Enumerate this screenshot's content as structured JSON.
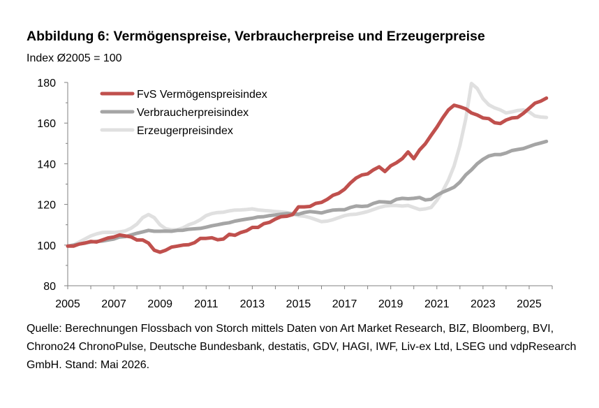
{
  "title": "Abbildung 6: Vermögenspreise, Verbraucherpreise und Erzeugerpreise",
  "subtitle": "Index Ø2005 = 100",
  "source": "Quelle: Berechnungen Flossbach von Storch mittels Daten von Art Market Research, BIZ, Bloomberg, BVI, Chrono24 ChronoPulse, Deutsche Bundesbank, destatis, GDV, HAGI, IWF, Liv-ex Ltd, LSEG und vdpResearch GmbH. Stand: Mai 2026.",
  "chart_data": {
    "type": "line",
    "xlim": [
      2005,
      2026
    ],
    "ylim": [
      80,
      180
    ],
    "xticks": [
      "2005",
      "2007",
      "2009",
      "2011",
      "2013",
      "2015",
      "2017",
      "2019",
      "2021",
      "2023",
      "2025"
    ],
    "yticks": [
      "80",
      "100",
      "120",
      "140",
      "160",
      "180"
    ],
    "grid": false,
    "legend_position": "top-left",
    "series": [
      {
        "name": "FvS Vermögenspreisindex",
        "color": "#c0504d",
        "points": [
          [
            2005.0,
            99.5
          ],
          [
            2005.25,
            99.5
          ],
          [
            2005.5,
            100.5
          ],
          [
            2005.75,
            101
          ],
          [
            2006.0,
            101.8
          ],
          [
            2006.25,
            101.5
          ],
          [
            2006.5,
            102.5
          ],
          [
            2006.75,
            103.5
          ],
          [
            2007.0,
            104
          ],
          [
            2007.25,
            105
          ],
          [
            2007.5,
            104.5
          ],
          [
            2007.75,
            104
          ],
          [
            2008.0,
            102.5
          ],
          [
            2008.25,
            102.5
          ],
          [
            2008.5,
            101
          ],
          [
            2008.75,
            97.5
          ],
          [
            2009.0,
            96.5
          ],
          [
            2009.25,
            97.5
          ],
          [
            2009.5,
            99
          ],
          [
            2009.75,
            99.5
          ],
          [
            2010.0,
            100
          ],
          [
            2010.25,
            100.2
          ],
          [
            2010.5,
            101.2
          ],
          [
            2010.75,
            103.3
          ],
          [
            2011.0,
            103.3
          ],
          [
            2011.25,
            103.6
          ],
          [
            2011.5,
            102.6
          ],
          [
            2011.75,
            103
          ],
          [
            2012.0,
            105.3
          ],
          [
            2012.25,
            104.8
          ],
          [
            2012.5,
            106.2
          ],
          [
            2012.75,
            107
          ],
          [
            2013.0,
            108.7
          ],
          [
            2013.25,
            108.7
          ],
          [
            2013.5,
            110.5
          ],
          [
            2013.75,
            111.2
          ],
          [
            2014.0,
            112.8
          ],
          [
            2014.25,
            114
          ],
          [
            2014.5,
            114.2
          ],
          [
            2014.75,
            115
          ],
          [
            2015.0,
            118.8
          ],
          [
            2015.25,
            118.8
          ],
          [
            2015.5,
            119
          ],
          [
            2015.75,
            120.5
          ],
          [
            2016.0,
            121
          ],
          [
            2016.25,
            122.5
          ],
          [
            2016.5,
            124.5
          ],
          [
            2016.75,
            125.5
          ],
          [
            2017.0,
            127.5
          ],
          [
            2017.25,
            130.5
          ],
          [
            2017.5,
            133
          ],
          [
            2017.75,
            134.5
          ],
          [
            2018.0,
            135
          ],
          [
            2018.25,
            137
          ],
          [
            2018.5,
            138.5
          ],
          [
            2018.75,
            136.2
          ],
          [
            2019.0,
            139
          ],
          [
            2019.25,
            140.5
          ],
          [
            2019.5,
            142.5
          ],
          [
            2019.75,
            145.8
          ],
          [
            2020.0,
            142.5
          ],
          [
            2020.25,
            146.8
          ],
          [
            2020.5,
            149.8
          ],
          [
            2020.75,
            154
          ],
          [
            2021.0,
            158
          ],
          [
            2021.25,
            162.5
          ],
          [
            2021.5,
            166.5
          ],
          [
            2021.75,
            168.8
          ],
          [
            2022.0,
            168
          ],
          [
            2022.25,
            167
          ],
          [
            2022.5,
            165
          ],
          [
            2022.75,
            164
          ],
          [
            2023.0,
            162.5
          ],
          [
            2023.25,
            162.2
          ],
          [
            2023.5,
            160.2
          ],
          [
            2023.75,
            159.8
          ],
          [
            2024.0,
            161.5
          ],
          [
            2024.25,
            162.5
          ],
          [
            2024.5,
            162.8
          ],
          [
            2024.75,
            164.8
          ],
          [
            2025.0,
            167.3
          ],
          [
            2025.25,
            169.8
          ],
          [
            2025.5,
            170.8
          ],
          [
            2025.75,
            172.3
          ]
        ]
      },
      {
        "name": "Verbraucherpreisindex",
        "color": "#a5a5a5",
        "points": [
          [
            2005.0,
            99.5
          ],
          [
            2005.25,
            100
          ],
          [
            2005.5,
            100.5
          ],
          [
            2005.75,
            101
          ],
          [
            2006.0,
            101.5
          ],
          [
            2006.25,
            101.8
          ],
          [
            2006.5,
            102
          ],
          [
            2006.75,
            102.5
          ],
          [
            2007.0,
            103
          ],
          [
            2007.25,
            104
          ],
          [
            2007.5,
            104.2
          ],
          [
            2007.75,
            105
          ],
          [
            2008.0,
            105.8
          ],
          [
            2008.25,
            106.5
          ],
          [
            2008.5,
            107.2
          ],
          [
            2008.75,
            106.8
          ],
          [
            2009.0,
            106.8
          ],
          [
            2009.25,
            106.9
          ],
          [
            2009.5,
            106.8
          ],
          [
            2009.75,
            107.2
          ],
          [
            2010.0,
            107.3
          ],
          [
            2010.25,
            107.8
          ],
          [
            2010.5,
            108
          ],
          [
            2010.75,
            108.2
          ],
          [
            2011.0,
            108.8
          ],
          [
            2011.25,
            109.5
          ],
          [
            2011.5,
            110
          ],
          [
            2011.75,
            110.6
          ],
          [
            2012.0,
            111
          ],
          [
            2012.25,
            111.8
          ],
          [
            2012.5,
            112.3
          ],
          [
            2012.75,
            112.8
          ],
          [
            2013.0,
            113.2
          ],
          [
            2013.25,
            113.8
          ],
          [
            2013.5,
            114
          ],
          [
            2013.75,
            114.5
          ],
          [
            2014.0,
            114.8
          ],
          [
            2014.25,
            115.2
          ],
          [
            2014.5,
            115.5
          ],
          [
            2014.75,
            115.4
          ],
          [
            2015.0,
            115.2
          ],
          [
            2015.25,
            116
          ],
          [
            2015.5,
            116.5
          ],
          [
            2015.75,
            116.2
          ],
          [
            2016.0,
            115.8
          ],
          [
            2016.25,
            116.6
          ],
          [
            2016.5,
            117.2
          ],
          [
            2016.75,
            117.4
          ],
          [
            2017.0,
            117.4
          ],
          [
            2017.25,
            118.5
          ],
          [
            2017.5,
            119.2
          ],
          [
            2017.75,
            119
          ],
          [
            2018.0,
            119.2
          ],
          [
            2018.25,
            120.5
          ],
          [
            2018.5,
            121.3
          ],
          [
            2018.75,
            121.2
          ],
          [
            2019.0,
            121
          ],
          [
            2019.25,
            122.5
          ],
          [
            2019.5,
            123
          ],
          [
            2019.75,
            122.8
          ],
          [
            2020.0,
            123
          ],
          [
            2020.25,
            123.4
          ],
          [
            2020.5,
            122.2
          ],
          [
            2020.75,
            122.5
          ],
          [
            2021.0,
            124.5
          ],
          [
            2021.25,
            126
          ],
          [
            2021.5,
            127.2
          ],
          [
            2021.75,
            128.5
          ],
          [
            2022.0,
            131
          ],
          [
            2022.25,
            134.5
          ],
          [
            2022.5,
            137
          ],
          [
            2022.75,
            140
          ],
          [
            2023.0,
            142.2
          ],
          [
            2023.25,
            143.8
          ],
          [
            2023.5,
            144.5
          ],
          [
            2023.75,
            144.5
          ],
          [
            2024.0,
            145.3
          ],
          [
            2024.25,
            146.5
          ],
          [
            2024.5,
            147
          ],
          [
            2024.75,
            147.5
          ],
          [
            2025.0,
            148.5
          ],
          [
            2025.25,
            149.5
          ],
          [
            2025.5,
            150.2
          ],
          [
            2025.75,
            151
          ]
        ]
      },
      {
        "name": "Erzeugerpreisindex",
        "color": "#e0e0e0",
        "points": [
          [
            2005.0,
            99.5
          ],
          [
            2005.25,
            100
          ],
          [
            2005.5,
            101.5
          ],
          [
            2005.75,
            103
          ],
          [
            2006.0,
            104.5
          ],
          [
            2006.25,
            105.5
          ],
          [
            2006.5,
            106.2
          ],
          [
            2006.75,
            106.3
          ],
          [
            2007.0,
            106.2
          ],
          [
            2007.25,
            106.5
          ],
          [
            2007.5,
            107
          ],
          [
            2007.75,
            108.3
          ],
          [
            2008.0,
            110.3
          ],
          [
            2008.25,
            113.5
          ],
          [
            2008.5,
            115
          ],
          [
            2008.75,
            113.5
          ],
          [
            2009.0,
            110
          ],
          [
            2009.25,
            108
          ],
          [
            2009.5,
            107.5
          ],
          [
            2009.75,
            107.6
          ],
          [
            2010.0,
            108.5
          ],
          [
            2010.25,
            110
          ],
          [
            2010.5,
            111
          ],
          [
            2010.75,
            112.5
          ],
          [
            2011.0,
            114.5
          ],
          [
            2011.25,
            115.5
          ],
          [
            2011.5,
            116
          ],
          [
            2011.75,
            116.2
          ],
          [
            2012.0,
            116.8
          ],
          [
            2012.25,
            117.2
          ],
          [
            2012.5,
            117.3
          ],
          [
            2012.75,
            117.5
          ],
          [
            2013.0,
            117.8
          ],
          [
            2013.25,
            117.3
          ],
          [
            2013.5,
            117
          ],
          [
            2013.75,
            116.8
          ],
          [
            2014.0,
            116.5
          ],
          [
            2014.25,
            116.3
          ],
          [
            2014.5,
            116
          ],
          [
            2014.75,
            115.2
          ],
          [
            2015.0,
            114.5
          ],
          [
            2015.25,
            114.2
          ],
          [
            2015.5,
            113.5
          ],
          [
            2015.75,
            112.5
          ],
          [
            2016.0,
            111.5
          ],
          [
            2016.25,
            111.8
          ],
          [
            2016.5,
            112.5
          ],
          [
            2016.75,
            113.5
          ],
          [
            2017.0,
            114.5
          ],
          [
            2017.25,
            115
          ],
          [
            2017.5,
            115.2
          ],
          [
            2017.75,
            115.8
          ],
          [
            2018.0,
            116.5
          ],
          [
            2018.25,
            117.5
          ],
          [
            2018.5,
            118.5
          ],
          [
            2018.75,
            119.2
          ],
          [
            2019.0,
            119.5
          ],
          [
            2019.25,
            119.5
          ],
          [
            2019.5,
            119.2
          ],
          [
            2019.75,
            119.5
          ],
          [
            2020.0,
            118.5
          ],
          [
            2020.25,
            117.5
          ],
          [
            2020.5,
            117.8
          ],
          [
            2020.75,
            118.5
          ],
          [
            2021.0,
            122
          ],
          [
            2021.25,
            126.5
          ],
          [
            2021.5,
            132
          ],
          [
            2021.75,
            139
          ],
          [
            2022.0,
            149
          ],
          [
            2022.25,
            162
          ],
          [
            2022.5,
            179.5
          ],
          [
            2022.75,
            177
          ],
          [
            2023.0,
            172
          ],
          [
            2023.25,
            169
          ],
          [
            2023.5,
            167.5
          ],
          [
            2023.75,
            166.5
          ],
          [
            2024.0,
            165
          ],
          [
            2024.25,
            165.5
          ],
          [
            2024.5,
            166.2
          ],
          [
            2024.75,
            166.5
          ],
          [
            2025.0,
            165.5
          ],
          [
            2025.25,
            163.5
          ],
          [
            2025.5,
            163
          ],
          [
            2025.75,
            162.8
          ]
        ]
      }
    ]
  }
}
